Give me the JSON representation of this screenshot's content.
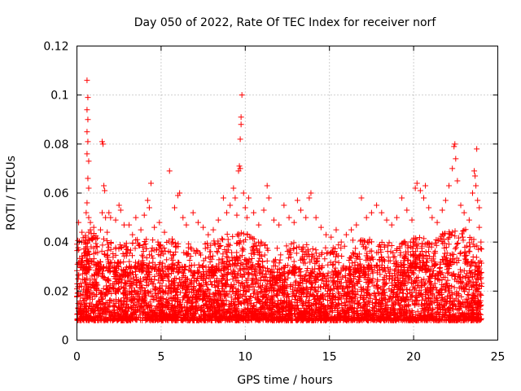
{
  "chart_data": {
    "type": "scatter",
    "title": "Day 050 of 2022, Rate Of TEC Index for receiver norf",
    "xlabel": "GPS time / hours",
    "ylabel": "ROTI / TECUs",
    "xlim": [
      0,
      25
    ],
    "ylim": [
      0,
      0.12
    ],
    "xticks": [
      0,
      5,
      10,
      15,
      20,
      25
    ],
    "xtick_labels": [
      "0",
      "5",
      "10",
      "15",
      "20",
      "25"
    ],
    "yticks": [
      0,
      0.02,
      0.04,
      0.06,
      0.08,
      0.1,
      0.12
    ],
    "ytick_labels": [
      "0",
      "0.02",
      "0.04",
      "0.06",
      "0.08",
      "0.1",
      "0.12"
    ],
    "grid": true,
    "marker": "+",
    "color": "#ff0000",
    "series": [
      {
        "name": "ROTI",
        "bands": {
          "x": [
            0,
            1,
            2,
            3,
            4,
            5,
            6,
            7,
            8,
            9,
            10,
            11,
            12,
            13,
            14,
            15,
            16,
            17,
            18,
            19,
            20,
            21,
            22,
            23,
            24
          ],
          "typical_max": [
            0.028,
            0.03,
            0.026,
            0.026,
            0.028,
            0.026,
            0.028,
            0.024,
            0.026,
            0.03,
            0.03,
            0.026,
            0.024,
            0.026,
            0.026,
            0.024,
            0.026,
            0.028,
            0.026,
            0.026,
            0.028,
            0.028,
            0.03,
            0.032,
            0.024
          ],
          "typical_min": 0.004
        },
        "points": [
          [
            0.1,
            0.048
          ],
          [
            0.3,
            0.044
          ],
          [
            0.5,
            0.042
          ],
          [
            0.8,
            0.045
          ],
          [
            1.0,
            0.046
          ],
          [
            0.5,
            0.04
          ],
          [
            0.55,
            0.038
          ],
          [
            0.7,
            0.036
          ],
          [
            0.9,
            0.041
          ],
          [
            1.2,
            0.038
          ],
          [
            0.6,
            0.106
          ],
          [
            0.65,
            0.099
          ],
          [
            0.6,
            0.094
          ],
          [
            0.65,
            0.09
          ],
          [
            0.6,
            0.085
          ],
          [
            0.65,
            0.081
          ],
          [
            0.6,
            0.076
          ],
          [
            0.7,
            0.073
          ],
          [
            0.65,
            0.066
          ],
          [
            0.7,
            0.062
          ],
          [
            0.6,
            0.056
          ],
          [
            0.55,
            0.052
          ],
          [
            0.7,
            0.05
          ],
          [
            0.8,
            0.048
          ],
          [
            0.7,
            0.044
          ],
          [
            1.5,
            0.081
          ],
          [
            1.55,
            0.08
          ],
          [
            1.6,
            0.063
          ],
          [
            1.65,
            0.061
          ],
          [
            1.5,
            0.052
          ],
          [
            1.7,
            0.05
          ],
          [
            1.4,
            0.045
          ],
          [
            1.9,
            0.052
          ],
          [
            2.0,
            0.05
          ],
          [
            1.8,
            0.044
          ],
          [
            2.5,
            0.055
          ],
          [
            2.6,
            0.053
          ],
          [
            2.3,
            0.049
          ],
          [
            2.8,
            0.047
          ],
          [
            3.1,
            0.047
          ],
          [
            3.5,
            0.05
          ],
          [
            3.3,
            0.043
          ],
          [
            3.8,
            0.045
          ],
          [
            4.0,
            0.051
          ],
          [
            4.2,
            0.057
          ],
          [
            4.4,
            0.064
          ],
          [
            4.3,
            0.054
          ],
          [
            4.6,
            0.046
          ],
          [
            4.9,
            0.048
          ],
          [
            5.2,
            0.044
          ],
          [
            5.5,
            0.069
          ],
          [
            5.8,
            0.054
          ],
          [
            6.0,
            0.059
          ],
          [
            6.1,
            0.06
          ],
          [
            6.3,
            0.05
          ],
          [
            6.5,
            0.047
          ],
          [
            6.9,
            0.052
          ],
          [
            7.2,
            0.048
          ],
          [
            7.5,
            0.046
          ],
          [
            7.8,
            0.043
          ],
          [
            8.1,
            0.045
          ],
          [
            8.4,
            0.049
          ],
          [
            8.7,
            0.058
          ],
          [
            8.9,
            0.052
          ],
          [
            9.1,
            0.055
          ],
          [
            9.3,
            0.062
          ],
          [
            9.4,
            0.058
          ],
          [
            9.5,
            0.051
          ],
          [
            9.6,
            0.069
          ],
          [
            9.65,
            0.071
          ],
          [
            9.7,
            0.07
          ],
          [
            9.7,
            0.082
          ],
          [
            9.75,
            0.088
          ],
          [
            9.75,
            0.091
          ],
          [
            9.8,
            0.1
          ],
          [
            9.9,
            0.06
          ],
          [
            10.0,
            0.054
          ],
          [
            10.1,
            0.05
          ],
          [
            10.2,
            0.058
          ],
          [
            10.5,
            0.052
          ],
          [
            10.8,
            0.047
          ],
          [
            11.1,
            0.053
          ],
          [
            11.3,
            0.063
          ],
          [
            11.4,
            0.058
          ],
          [
            11.7,
            0.049
          ],
          [
            12.0,
            0.047
          ],
          [
            12.3,
            0.055
          ],
          [
            12.6,
            0.05
          ],
          [
            12.9,
            0.048
          ],
          [
            13.1,
            0.057
          ],
          [
            13.3,
            0.053
          ],
          [
            13.6,
            0.05
          ],
          [
            13.8,
            0.058
          ],
          [
            13.9,
            0.06
          ],
          [
            14.2,
            0.05
          ],
          [
            14.5,
            0.046
          ],
          [
            14.8,
            0.043
          ],
          [
            15.1,
            0.042
          ],
          [
            15.4,
            0.045
          ],
          [
            15.7,
            0.04
          ],
          [
            16.0,
            0.043
          ],
          [
            16.3,
            0.045
          ],
          [
            16.6,
            0.047
          ],
          [
            16.9,
            0.058
          ],
          [
            17.2,
            0.05
          ],
          [
            17.5,
            0.052
          ],
          [
            17.8,
            0.055
          ],
          [
            18.1,
            0.052
          ],
          [
            18.4,
            0.049
          ],
          [
            18.7,
            0.047
          ],
          [
            19.0,
            0.05
          ],
          [
            19.3,
            0.058
          ],
          [
            19.6,
            0.053
          ],
          [
            19.9,
            0.049
          ],
          [
            20.1,
            0.062
          ],
          [
            20.2,
            0.064
          ],
          [
            20.4,
            0.061
          ],
          [
            20.6,
            0.058
          ],
          [
            20.7,
            0.063
          ],
          [
            20.9,
            0.054
          ],
          [
            21.1,
            0.05
          ],
          [
            21.4,
            0.048
          ],
          [
            21.7,
            0.053
          ],
          [
            21.9,
            0.057
          ],
          [
            22.1,
            0.063
          ],
          [
            22.3,
            0.07
          ],
          [
            22.4,
            0.079
          ],
          [
            22.45,
            0.08
          ],
          [
            22.5,
            0.074
          ],
          [
            22.6,
            0.065
          ],
          [
            22.8,
            0.055
          ],
          [
            23.0,
            0.052
          ],
          [
            23.3,
            0.049
          ],
          [
            23.5,
            0.06
          ],
          [
            23.6,
            0.069
          ],
          [
            23.65,
            0.067
          ],
          [
            23.7,
            0.063
          ],
          [
            23.75,
            0.078
          ],
          [
            23.8,
            0.057
          ],
          [
            23.9,
            0.054
          ],
          [
            23.9,
            0.046
          ],
          [
            24.0,
            0.04
          ],
          [
            23.85,
            0.037
          ]
        ]
      }
    ]
  }
}
